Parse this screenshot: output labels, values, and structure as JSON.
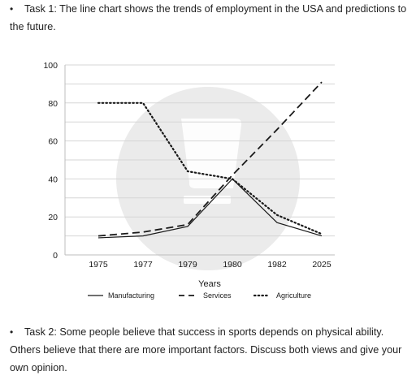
{
  "task1": {
    "bullet": "•",
    "text": "Task 1: The line chart shows the trends of employment in the USA and predictions to the future."
  },
  "task2": {
    "bullet": "•",
    "text": "Task 2: Some people believe that success in sports depends on physical ability. Others believe that there are more important factors. Discuss both views and give your own opinion."
  },
  "chart_data": {
    "type": "line",
    "title": "",
    "xlabel": "Years",
    "ylabel": "",
    "categories": [
      "1975",
      "1977",
      "1979",
      "1980",
      "1982",
      "2025"
    ],
    "yticks": [
      0,
      20,
      40,
      60,
      80,
      100
    ],
    "ylim": [
      0,
      100
    ],
    "grid": "horizontal",
    "legend_position": "bottom",
    "series": [
      {
        "name": "Manufacturing",
        "style": "solid",
        "values": [
          9,
          10,
          15,
          40,
          17,
          10
        ]
      },
      {
        "name": "Services",
        "style": "dashed",
        "values": [
          10,
          12,
          16,
          42,
          66,
          91
        ]
      },
      {
        "name": "Agriculture",
        "style": "dotted",
        "values": [
          80,
          80,
          44,
          40,
          21,
          11
        ]
      }
    ],
    "colors": {
      "line": "#1a1a1a",
      "grid": "#d6d6d6",
      "watermark": "#ebebeb"
    }
  }
}
